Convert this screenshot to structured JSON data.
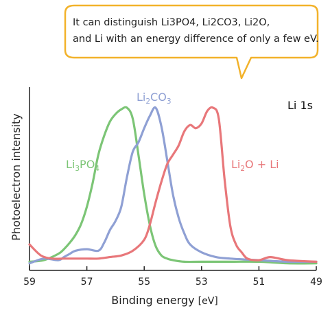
{
  "callout": {
    "line1": "It can distinguish Li3PO4, Li2CO3, Li2O,",
    "line2": "and Li with an energy difference of only a few eV.",
    "border_color": "#f2b22a"
  },
  "chart_data": {
    "type": "line",
    "title": "",
    "panel_label": "Li 1s",
    "xlabel": "Binding energy",
    "xlabel_unit": "[eV]",
    "ylabel": "Photoelectron intensity",
    "xlim": [
      59,
      49
    ],
    "x_reversed": true,
    "ylim": [
      0,
      1
    ],
    "y_ticks_shown": false,
    "grid": false,
    "x_ticks": [
      59,
      57,
      55,
      53,
      51,
      49
    ],
    "series": [
      {
        "label_parts": [
          [
            "Li",
            "n"
          ],
          [
            "3",
            "sub"
          ],
          [
            "PO",
            "n"
          ],
          [
            "4",
            "sub"
          ]
        ],
        "color": "#7cc576",
        "x": [
          59.0,
          58.5,
          58.0,
          57.8,
          57.6,
          57.4,
          57.2,
          57.0,
          56.8,
          56.6,
          56.4,
          56.2,
          56.0,
          55.8,
          55.6,
          55.4,
          55.2,
          55.0,
          54.8,
          54.6,
          54.4,
          54.2,
          54.0,
          53.6,
          53.0,
          52.0,
          51.0,
          50.0,
          49.0
        ],
        "y": [
          0.02,
          0.03,
          0.07,
          0.1,
          0.14,
          0.19,
          0.26,
          0.37,
          0.52,
          0.7,
          0.82,
          0.91,
          0.96,
          0.99,
          1.0,
          0.93,
          0.7,
          0.45,
          0.25,
          0.12,
          0.06,
          0.04,
          0.03,
          0.02,
          0.02,
          0.02,
          0.02,
          0.01,
          0.01
        ]
      },
      {
        "label_parts": [
          [
            "Li",
            "n"
          ],
          [
            "2",
            "sub"
          ],
          [
            "CO",
            "n"
          ],
          [
            "3",
            "sub"
          ]
        ],
        "color": "#8fa0d4",
        "x": [
          59.0,
          58.5,
          58.0,
          57.8,
          57.6,
          57.4,
          57.0,
          56.6,
          56.4,
          56.2,
          56.0,
          55.8,
          55.6,
          55.4,
          55.2,
          55.0,
          54.8,
          54.6,
          54.4,
          54.2,
          54.0,
          53.8,
          53.6,
          53.4,
          53.0,
          52.5,
          52.0,
          51.0,
          50.0,
          49.0
        ],
        "y": [
          0.01,
          0.04,
          0.03,
          0.05,
          0.07,
          0.09,
          0.1,
          0.09,
          0.14,
          0.22,
          0.28,
          0.37,
          0.56,
          0.72,
          0.78,
          0.87,
          0.95,
          1.0,
          0.88,
          0.67,
          0.45,
          0.3,
          0.2,
          0.13,
          0.08,
          0.05,
          0.04,
          0.03,
          0.02,
          0.02
        ]
      },
      {
        "label_parts": [
          [
            "Li",
            "n"
          ],
          [
            "2",
            "sub"
          ],
          [
            "O + Li",
            "n"
          ]
        ],
        "color": "#e8777a",
        "x": [
          59.0,
          58.6,
          58.2,
          57.8,
          57.4,
          57.0,
          56.6,
          56.2,
          55.8,
          55.4,
          55.0,
          54.8,
          54.6,
          54.4,
          54.2,
          54.0,
          53.8,
          53.6,
          53.4,
          53.2,
          53.0,
          52.8,
          52.6,
          52.4,
          52.2,
          52.0,
          51.8,
          51.6,
          51.4,
          51.0,
          50.6,
          50.0,
          49.0
        ],
        "y": [
          0.13,
          0.06,
          0.04,
          0.04,
          0.04,
          0.04,
          0.04,
          0.05,
          0.06,
          0.09,
          0.16,
          0.26,
          0.4,
          0.53,
          0.64,
          0.7,
          0.76,
          0.85,
          0.89,
          0.87,
          0.9,
          0.98,
          1.0,
          0.93,
          0.55,
          0.25,
          0.13,
          0.08,
          0.04,
          0.03,
          0.05,
          0.03,
          0.02
        ]
      }
    ]
  }
}
